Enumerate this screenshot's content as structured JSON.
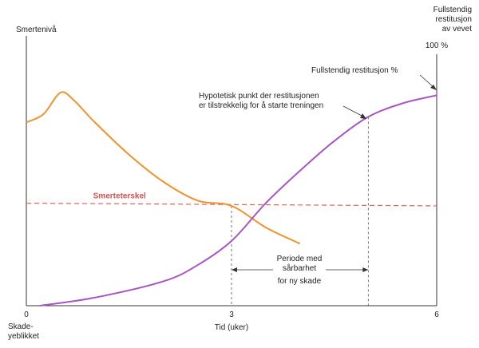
{
  "chart_data": {
    "type": "line",
    "xlabel": "Tid (uker)",
    "ylabel_left": "Smertenivå",
    "ylabel_right_lines": [
      "Fullstendig",
      "restitusjon",
      "av vevet"
    ],
    "right_top_tick": "100 %",
    "x_ticks": [
      "0",
      "3",
      "6"
    ],
    "x_origin_label_lines": [
      "Skade-",
      "yeblikket"
    ],
    "xlim": [
      0,
      6
    ],
    "ylim": [
      0,
      100
    ],
    "series": [
      {
        "key": "pain",
        "color": "#f0922e",
        "x": [
          0,
          0.25,
          0.5,
          0.7,
          1.0,
          1.5,
          2.0,
          2.5,
          3.0,
          3.5,
          4.0
        ],
        "y": [
          68,
          71,
          79,
          76,
          68,
          56,
          46,
          39,
          37,
          29,
          23
        ]
      },
      {
        "key": "healing",
        "color": "#a557c2",
        "x": [
          0.2,
          1.0,
          2.0,
          2.5,
          3.0,
          3.5,
          4.0,
          4.5,
          5.0,
          5.5,
          6.0
        ],
        "y": [
          0,
          3,
          9,
          15,
          24,
          38,
          50,
          61,
          70,
          75,
          78
        ]
      }
    ],
    "threshold": {
      "label": "Smerteterskel",
      "color": "#e0605a",
      "y_start": 38,
      "y_end": 37
    },
    "annotations": {
      "full_restitution": "Fullstendig restitusjon %",
      "hypothetical_lines": [
        "Hypotetisk punkt der restitusjonen",
        "er tilstrekkelig for å starte treningen"
      ],
      "vulnerability_lines": [
        "Periode med",
        "sårbarhet",
        "for ny skade"
      ],
      "period_start_x": 3.0,
      "period_end_x": 5.0
    }
  }
}
